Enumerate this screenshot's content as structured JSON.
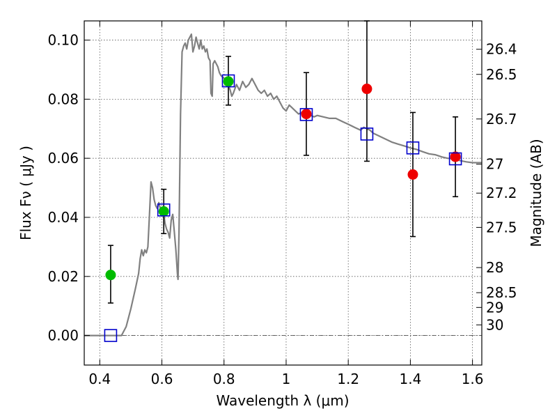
{
  "chart_data": {
    "type": "scatter",
    "xlabel": "Wavelength  λ (μm)",
    "ylabel": "Flux  Fν  ( μJy )",
    "y2label": "Magnitude (AB)",
    "xlim": [
      0.35,
      1.63
    ],
    "ylim": [
      -0.01,
      0.1065
    ],
    "grid": true,
    "xticks": [
      {
        "value": 0.4,
        "label": "0.4"
      },
      {
        "value": 0.6,
        "label": "0.6"
      },
      {
        "value": 0.8,
        "label": "0.8"
      },
      {
        "value": 1.0,
        "label": "1"
      },
      {
        "value": 1.2,
        "label": "1.2"
      },
      {
        "value": 1.4,
        "label": "1.4"
      },
      {
        "value": 1.6,
        "label": "1.6"
      }
    ],
    "yticks": [
      {
        "value": 0.0,
        "label": "0.00"
      },
      {
        "value": 0.02,
        "label": "0.02"
      },
      {
        "value": 0.04,
        "label": "0.04"
      },
      {
        "value": 0.06,
        "label": "0.06"
      },
      {
        "value": 0.08,
        "label": "0.08"
      },
      {
        "value": 0.1,
        "label": "0.10"
      }
    ],
    "y2ticks": [
      {
        "flux": 0.0969,
        "label": "26.4"
      },
      {
        "flux": 0.0884,
        "label": "26.5"
      },
      {
        "flux": 0.0733,
        "label": "26.7"
      },
      {
        "flux": 0.058,
        "label": "27"
      },
      {
        "flux": 0.0482,
        "label": "27.2"
      },
      {
        "flux": 0.0366,
        "label": "27.5"
      },
      {
        "flux": 0.023,
        "label": "28"
      },
      {
        "flux": 0.0145,
        "label": "28.5"
      },
      {
        "flux": 0.0095,
        "label": "29"
      },
      {
        "flux": 0.0036,
        "label": "30"
      }
    ],
    "colors": {
      "model": "#808080",
      "green": "#00bb00",
      "red": "#ee0000",
      "square": "#0000cc",
      "errorbar": "#000000",
      "grid": "#555555"
    },
    "series": [
      {
        "name": "model_sed",
        "type": "line",
        "points": [
          [
            0.35,
            0.0
          ],
          [
            0.47,
            0.0
          ],
          [
            0.485,
            0.003
          ],
          [
            0.5,
            0.009
          ],
          [
            0.515,
            0.016
          ],
          [
            0.525,
            0.021
          ],
          [
            0.53,
            0.026
          ],
          [
            0.535,
            0.029
          ],
          [
            0.54,
            0.027
          ],
          [
            0.545,
            0.029
          ],
          [
            0.55,
            0.028
          ],
          [
            0.555,
            0.03
          ],
          [
            0.56,
            0.041
          ],
          [
            0.565,
            0.052
          ],
          [
            0.57,
            0.05
          ],
          [
            0.575,
            0.046
          ],
          [
            0.58,
            0.044
          ],
          [
            0.585,
            0.043
          ],
          [
            0.59,
            0.045
          ],
          [
            0.595,
            0.043
          ],
          [
            0.6,
            0.041
          ],
          [
            0.605,
            0.042
          ],
          [
            0.61,
            0.038
          ],
          [
            0.615,
            0.036
          ],
          [
            0.62,
            0.035
          ],
          [
            0.625,
            0.033
          ],
          [
            0.63,
            0.039
          ],
          [
            0.635,
            0.041
          ],
          [
            0.64,
            0.035
          ],
          [
            0.645,
            0.029
          ],
          [
            0.65,
            0.021
          ],
          [
            0.652,
            0.019
          ],
          [
            0.655,
            0.035
          ],
          [
            0.66,
            0.075
          ],
          [
            0.665,
            0.096
          ],
          [
            0.67,
            0.098
          ],
          [
            0.675,
            0.099
          ],
          [
            0.68,
            0.097
          ],
          [
            0.685,
            0.1
          ],
          [
            0.69,
            0.101
          ],
          [
            0.695,
            0.102
          ],
          [
            0.7,
            0.096
          ],
          [
            0.705,
            0.098
          ],
          [
            0.71,
            0.101
          ],
          [
            0.715,
            0.099
          ],
          [
            0.72,
            0.097
          ],
          [
            0.725,
            0.1
          ],
          [
            0.73,
            0.097
          ],
          [
            0.735,
            0.098
          ],
          [
            0.74,
            0.096
          ],
          [
            0.745,
            0.097
          ],
          [
            0.75,
            0.094
          ],
          [
            0.755,
            0.093
          ],
          [
            0.758,
            0.082
          ],
          [
            0.762,
            0.081
          ],
          [
            0.765,
            0.092
          ],
          [
            0.77,
            0.093
          ],
          [
            0.775,
            0.092
          ],
          [
            0.78,
            0.091
          ],
          [
            0.785,
            0.089
          ],
          [
            0.79,
            0.088
          ],
          [
            0.8,
            0.087
          ],
          [
            0.81,
            0.086
          ],
          [
            0.82,
            0.083
          ],
          [
            0.825,
            0.081
          ],
          [
            0.83,
            0.082
          ],
          [
            0.84,
            0.085
          ],
          [
            0.85,
            0.083
          ],
          [
            0.86,
            0.086
          ],
          [
            0.87,
            0.084
          ],
          [
            0.88,
            0.085
          ],
          [
            0.89,
            0.087
          ],
          [
            0.9,
            0.085
          ],
          [
            0.91,
            0.083
          ],
          [
            0.92,
            0.082
          ],
          [
            0.93,
            0.083
          ],
          [
            0.94,
            0.081
          ],
          [
            0.95,
            0.082
          ],
          [
            0.96,
            0.08
          ],
          [
            0.97,
            0.081
          ],
          [
            0.98,
            0.079
          ],
          [
            0.99,
            0.077
          ],
          [
            1.0,
            0.076
          ],
          [
            1.01,
            0.078
          ],
          [
            1.02,
            0.077
          ],
          [
            1.03,
            0.076
          ],
          [
            1.04,
            0.075
          ],
          [
            1.05,
            0.0755
          ],
          [
            1.06,
            0.075
          ],
          [
            1.07,
            0.0755
          ],
          [
            1.08,
            0.0745
          ],
          [
            1.09,
            0.074
          ],
          [
            1.1,
            0.0745
          ],
          [
            1.12,
            0.074
          ],
          [
            1.14,
            0.0735
          ],
          [
            1.16,
            0.0735
          ],
          [
            1.18,
            0.0725
          ],
          [
            1.2,
            0.0715
          ],
          [
            1.22,
            0.0705
          ],
          [
            1.24,
            0.0695
          ],
          [
            1.25,
            0.0705
          ],
          [
            1.26,
            0.07
          ],
          [
            1.27,
            0.0695
          ],
          [
            1.28,
            0.0685
          ],
          [
            1.3,
            0.0675
          ],
          [
            1.32,
            0.0665
          ],
          [
            1.34,
            0.0655
          ],
          [
            1.36,
            0.0648
          ],
          [
            1.38,
            0.0642
          ],
          [
            1.4,
            0.0635
          ],
          [
            1.42,
            0.063
          ],
          [
            1.44,
            0.0622
          ],
          [
            1.46,
            0.0615
          ],
          [
            1.48,
            0.0612
          ],
          [
            1.5,
            0.0605
          ],
          [
            1.52,
            0.06
          ],
          [
            1.54,
            0.0598
          ],
          [
            1.56,
            0.0592
          ],
          [
            1.58,
            0.0588
          ],
          [
            1.6,
            0.0585
          ],
          [
            1.63,
            0.0585
          ]
        ]
      },
      {
        "name": "observed_blue_bands",
        "type": "scatter",
        "marker": "circle",
        "color": "green",
        "points": [
          {
            "x": 0.435,
            "y": 0.0205,
            "err_low": 0.011,
            "err_high": 0.0305
          },
          {
            "x": 0.606,
            "y": 0.042,
            "err_low": 0.0345,
            "err_high": 0.0495
          },
          {
            "x": 0.814,
            "y": 0.086,
            "err_low": 0.078,
            "err_high": 0.0945
          }
        ]
      },
      {
        "name": "observed_nir_bands",
        "type": "scatter",
        "marker": "circle",
        "color": "red",
        "points": [
          {
            "x": 1.065,
            "y": 0.075,
            "err_low": 0.061,
            "err_high": 0.089
          },
          {
            "x": 1.26,
            "y": 0.0835,
            "err_low": 0.059,
            "err_high": 0.1065
          },
          {
            "x": 1.408,
            "y": 0.0545,
            "err_low": 0.0335,
            "err_high": 0.0755
          },
          {
            "x": 1.545,
            "y": 0.0605,
            "err_low": 0.047,
            "err_high": 0.074
          }
        ]
      },
      {
        "name": "model_band_flux",
        "type": "scatter",
        "marker": "open-square",
        "color": "square",
        "points": [
          {
            "x": 0.435,
            "y": 0.0
          },
          {
            "x": 0.606,
            "y": 0.0425
          },
          {
            "x": 0.814,
            "y": 0.0862
          },
          {
            "x": 1.065,
            "y": 0.0748
          },
          {
            "x": 1.26,
            "y": 0.0682
          },
          {
            "x": 1.408,
            "y": 0.0635
          },
          {
            "x": 1.545,
            "y": 0.0598
          }
        ]
      }
    ]
  }
}
